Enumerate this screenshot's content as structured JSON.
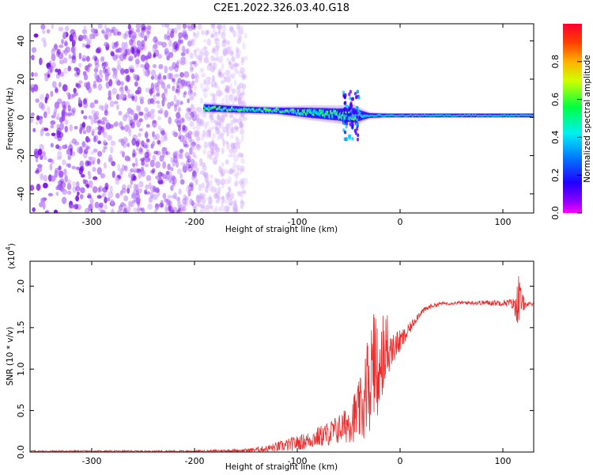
{
  "chart_data": [
    {
      "type": "heatmap",
      "title": "C2E1.2022.326.03.40.G18",
      "xlabel": "Height of straight line (km)",
      "ylabel": "Frequency (Hz)",
      "xlim": [
        -360,
        130
      ],
      "ylim": [
        -50,
        49
      ],
      "xticks": [
        -300,
        -200,
        -100,
        0,
        100
      ],
      "yticks": [
        40,
        20,
        0,
        -20,
        -40
      ],
      "colorbar": {
        "label": "Normalized spectral amplitude",
        "range": [
          0,
          1
        ],
        "ticks": [
          "0.0",
          "0.2",
          "0.4",
          "0.6",
          "0.8"
        ],
        "colormap": [
          "#ff00ff",
          "#7000ff",
          "#0000ff",
          "#00e0ff",
          "#00ff40",
          "#ffff00",
          "#ff8000",
          "#ff0000"
        ]
      },
      "features": {
        "noise_region_height_km": [
          -360,
          -150
        ],
        "signal_start_height_km": -190,
        "tone_frequency_hz": [
          [
            -190,
            5
          ],
          [
            -150,
            4
          ],
          [
            -120,
            3.5
          ],
          [
            -90,
            2.5
          ],
          [
            -60,
            1.5
          ],
          [
            -40,
            1
          ],
          [
            -20,
            1
          ],
          [
            0,
            1
          ],
          [
            50,
            1
          ],
          [
            100,
            1
          ],
          [
            130,
            1
          ]
        ],
        "spectral_width_hz": [
          [
            -190,
            6
          ],
          [
            -150,
            5
          ],
          [
            -120,
            5
          ],
          [
            -90,
            8
          ],
          [
            -60,
            10
          ],
          [
            -45,
            12
          ],
          [
            -30,
            4
          ],
          [
            0,
            2
          ],
          [
            100,
            2
          ],
          [
            130,
            2
          ]
        ]
      }
    },
    {
      "type": "line",
      "xlabel": "Height of straight line (km)",
      "ylabel": "SNR (10 * v/v)",
      "y_multiplier": "(x10",
      "y_multiplier_exp": "4",
      "xlim": [
        -360,
        130
      ],
      "ylim": [
        0,
        2.3
      ],
      "xticks": [
        -300,
        -200,
        -100,
        0,
        100
      ],
      "yticks": [
        "0.0",
        "0.5",
        "1.0",
        "1.5",
        "2.0"
      ],
      "series": [
        {
          "color": "#ee2a2a",
          "envelope": {
            "x": [
              -360,
              -200,
              -150,
              -130,
              -110,
              -90,
              -70,
              -55,
              -45,
              -35,
              -28,
              -22,
              -18,
              -14,
              -10,
              -5,
              0,
              5,
              10,
              15,
              20,
              30,
              40,
              60,
              80,
              100,
              108,
              112,
              115,
              118,
              122,
              130
            ],
            "y_mean": [
              0.01,
              0.01,
              0.02,
              0.04,
              0.08,
              0.14,
              0.22,
              0.3,
              0.42,
              0.55,
              0.7,
              0.8,
              0.95,
              1.1,
              1.2,
              1.28,
              1.33,
              1.4,
              1.5,
              1.6,
              1.68,
              1.76,
              1.79,
              1.8,
              1.8,
              1.8,
              1.8,
              1.75,
              1.85,
              1.8,
              1.78,
              1.78
            ],
            "y_noise": [
              0.01,
              0.01,
              0.02,
              0.04,
              0.08,
              0.1,
              0.15,
              0.2,
              0.3,
              0.45,
              0.5,
              0.45,
              0.35,
              0.3,
              0.2,
              0.18,
              0.14,
              0.1,
              0.07,
              0.05,
              0.04,
              0.03,
              0.02,
              0.02,
              0.03,
              0.04,
              0.05,
              0.12,
              0.35,
              0.15,
              0.04,
              0.02
            ]
          }
        }
      ]
    }
  ]
}
